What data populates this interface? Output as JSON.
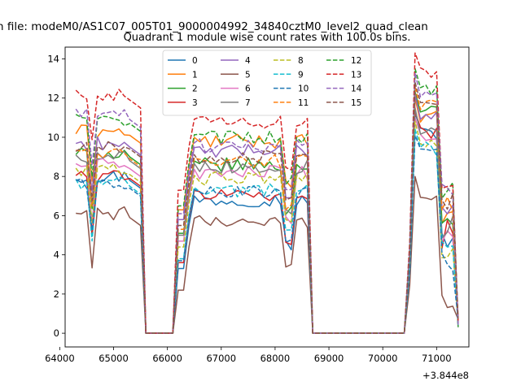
{
  "chart_data": {
    "type": "line",
    "suptitle": "n file: modeM0/AS1C07_005T01_9000004992_34840cztM0_level2_quad_clean",
    "title": "Quadrant 1 module wise count rates with 100.0s bins.",
    "xlabel": "",
    "ylabel": "",
    "x_offset_label": "+3.844e8",
    "xlim": [
      64100,
      71600
    ],
    "ylim": [
      -0.7,
      14.6
    ],
    "xticks": [
      64000,
      65000,
      66000,
      67000,
      68000,
      69000,
      70000,
      71000
    ],
    "xtick_labels": [
      "64000",
      "65000",
      "66000",
      "67000",
      "68000",
      "69000",
      "70000",
      "71000"
    ],
    "yticks": [
      0,
      2,
      4,
      6,
      8,
      10,
      12,
      14
    ],
    "ytick_labels": [
      "0",
      "2",
      "4",
      "6",
      "8",
      "10",
      "12",
      "14"
    ],
    "legend": {
      "position": "top-center",
      "ncol": 4
    },
    "segments": [
      {
        "x_start": 64300,
        "x_end": 65500,
        "peak_x": 64600
      },
      {
        "x_start": 66200,
        "x_end": 68600,
        "peak_x": 67500
      },
      {
        "x_start": 70600,
        "x_end": 71300,
        "peak_x": 70650
      }
    ],
    "series": [
      {
        "name": "0",
        "color": "#1f77b4",
        "dash": "solid",
        "levels": [
          8.0,
          6.8,
          10.2
        ],
        "min": 0.0
      },
      {
        "name": "1",
        "color": "#ff7f0e",
        "dash": "solid",
        "levels": [
          10.3,
          9.8,
          11.0
        ],
        "min": 0.0
      },
      {
        "name": "2",
        "color": "#2ca02c",
        "dash": "solid",
        "levels": [
          9.2,
          8.6,
          11.3
        ],
        "min": 0.0
      },
      {
        "name": "3",
        "color": "#d62728",
        "dash": "solid",
        "levels": [
          8.1,
          7.1,
          10.3
        ],
        "min": 0.0
      },
      {
        "name": "4",
        "color": "#9467bd",
        "dash": "solid",
        "levels": [
          9.7,
          9.3,
          11.2
        ],
        "min": 0.0
      },
      {
        "name": "5",
        "color": "#8c564b",
        "dash": "solid",
        "levels": [
          6.1,
          5.7,
          7.0
        ],
        "min": 0.0
      },
      {
        "name": "6",
        "color": "#e377c2",
        "dash": "solid",
        "levels": [
          8.6,
          8.2,
          10.0
        ],
        "min": 0.0
      },
      {
        "name": "7",
        "color": "#7f7f7f",
        "dash": "solid",
        "levels": [
          9.0,
          8.5,
          10.5
        ],
        "min": 0.0
      },
      {
        "name": "8",
        "color": "#bcbd22",
        "dash": "dashed",
        "levels": [
          8.3,
          7.9,
          9.8
        ],
        "min": 0.0
      },
      {
        "name": "9",
        "color": "#17becf",
        "dash": "dashed",
        "levels": [
          7.7,
          7.3,
          9.4
        ],
        "min": 0.0
      },
      {
        "name": "10",
        "color": "#1f77b4",
        "dash": "dashed",
        "levels": [
          7.6,
          7.2,
          9.1
        ],
        "min": 0.0
      },
      {
        "name": "11",
        "color": "#ff7f0e",
        "dash": "dashed",
        "levels": [
          9.1,
          8.8,
          11.6
        ],
        "min": 0.0
      },
      {
        "name": "12",
        "color": "#2ca02c",
        "dash": "dashed",
        "levels": [
          10.9,
          10.0,
          12.5
        ],
        "min": 0.0
      },
      {
        "name": "13",
        "color": "#d62728",
        "dash": "dashed",
        "levels": [
          12.1,
          10.8,
          13.3
        ],
        "min": 0.0
      },
      {
        "name": "14",
        "color": "#9467bd",
        "dash": "dashed",
        "levels": [
          11.1,
          9.6,
          12.3
        ],
        "min": 0.0
      },
      {
        "name": "15",
        "color": "#8c564b",
        "dash": "dashed",
        "levels": [
          9.6,
          9.0,
          11.8
        ],
        "min": 0.0
      }
    ]
  }
}
